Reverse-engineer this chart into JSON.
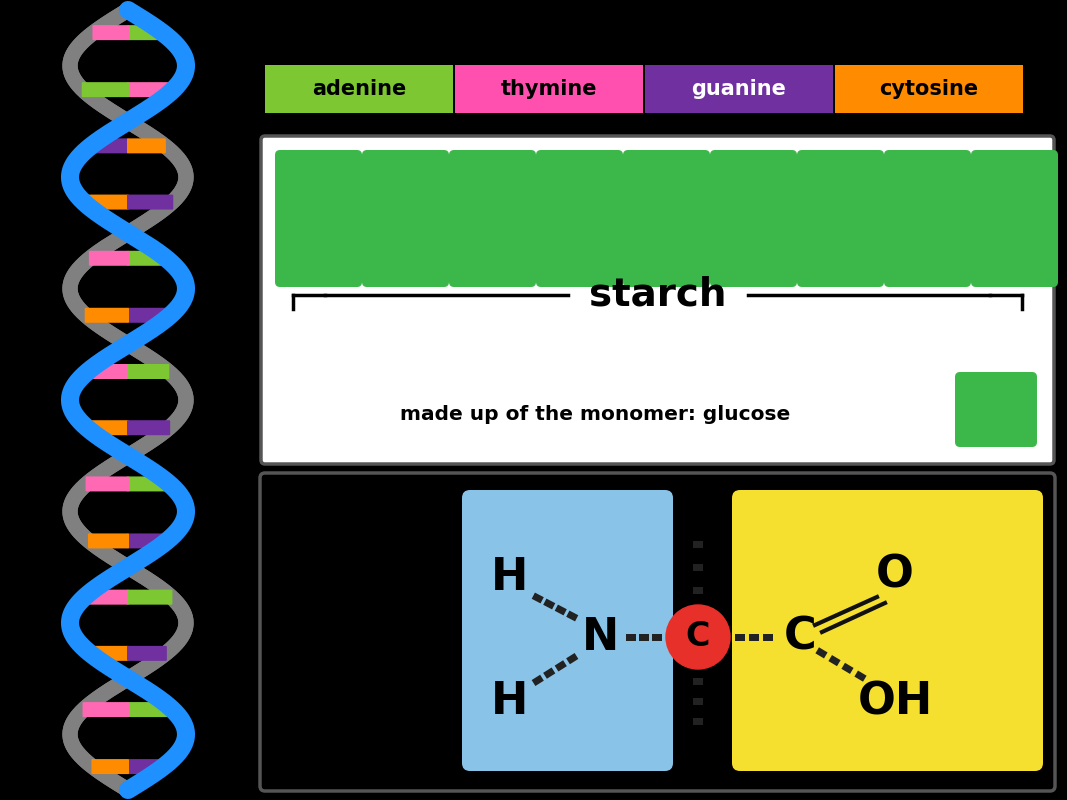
{
  "background_color": "#000000",
  "dna_blue_color": "#1e90ff",
  "dna_gray_color": "#808080",
  "base_colors": {
    "adenine": "#7dc832",
    "thymine": "#ff69b4",
    "guanine": "#7030a0",
    "cytosine": "#ff8c00"
  },
  "legend_labels": [
    "adenine",
    "thymine",
    "guanine",
    "cytosine"
  ],
  "legend_colors": [
    "#7dc832",
    "#ff50b0",
    "#7030a0",
    "#ff8c00"
  ],
  "legend_text_colors": [
    "#000000",
    "#000000",
    "#ffffff",
    "#000000"
  ],
  "starch_box_bg": "#ffffff",
  "starch_box_border": "#555555",
  "starch_green": "#3cb84a",
  "starch_label": "starch",
  "starch_monomer_text": "made up of the monomer: glucose",
  "protein_box_bg": "#000000",
  "protein_box_border": "#555555",
  "blue_box_color": "#89c4e8",
  "yellow_box_color": "#f5e030",
  "carbon_color": "#e8302a",
  "fig_width": 10.67,
  "fig_height": 8.0,
  "dna_rung_colors": [
    [
      "#7dc832",
      "#ff69b4"
    ],
    [
      "#ff69b4",
      "#7dc832"
    ],
    [
      "#7030a0",
      "#ff8c00"
    ],
    [
      "#ff8c00",
      "#7030a0"
    ],
    [
      "#7dc832",
      "#ff69b4"
    ],
    [
      "#7030a0",
      "#ff8c00"
    ],
    [
      "#ff69b4",
      "#7dc832"
    ],
    [
      "#ff8c00",
      "#7030a0"
    ],
    [
      "#7dc832",
      "#ff69b4"
    ],
    [
      "#7030a0",
      "#ff8c00"
    ],
    [
      "#ff69b4",
      "#7dc832"
    ],
    [
      "#ff8c00",
      "#7030a0"
    ],
    [
      "#7dc832",
      "#ff69b4"
    ],
    [
      "#7030a0",
      "#ff8c00"
    ]
  ]
}
